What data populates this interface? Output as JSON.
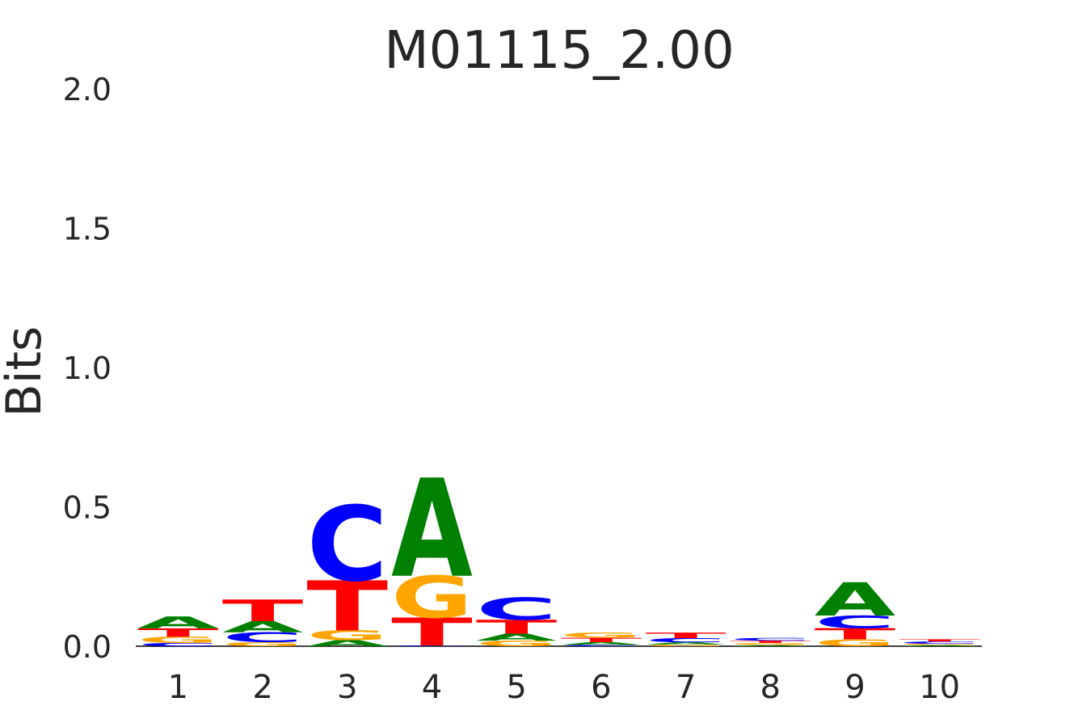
{
  "chart_data": {
    "type": "logo",
    "title": "M01115_2.00",
    "ylabel": "Bits",
    "categories": [
      "1",
      "2",
      "3",
      "4",
      "5",
      "6",
      "7",
      "8",
      "9",
      "10"
    ],
    "series": [
      {
        "name": "A",
        "color": "#008000",
        "values": [
          0.043,
          0.04,
          0.022,
          0.353,
          0.025,
          0.01,
          0.008,
          0.004,
          0.12,
          0.004
        ]
      },
      {
        "name": "C",
        "color": "#0000ff",
        "values": [
          0.012,
          0.035,
          0.27,
          0.003,
          0.08,
          0.005,
          0.015,
          0.01,
          0.045,
          0.008
        ]
      },
      {
        "name": "G",
        "color": "#ffa500",
        "values": [
          0.022,
          0.015,
          0.035,
          0.15,
          0.02,
          0.018,
          0.006,
          0.008,
          0.025,
          0.005
        ]
      },
      {
        "name": "T",
        "color": "#ff0000",
        "values": [
          0.03,
          0.078,
          0.18,
          0.1,
          0.05,
          0.015,
          0.02,
          0.008,
          0.04,
          0.008
        ]
      }
    ],
    "ylim": [
      0,
      2
    ],
    "yticks": [
      {
        "value": 0,
        "label": "0.0"
      },
      0.5,
      {
        "value": 1,
        "label": "1.0"
      },
      1.5,
      {
        "value": 2,
        "label": "2.0"
      }
    ]
  }
}
